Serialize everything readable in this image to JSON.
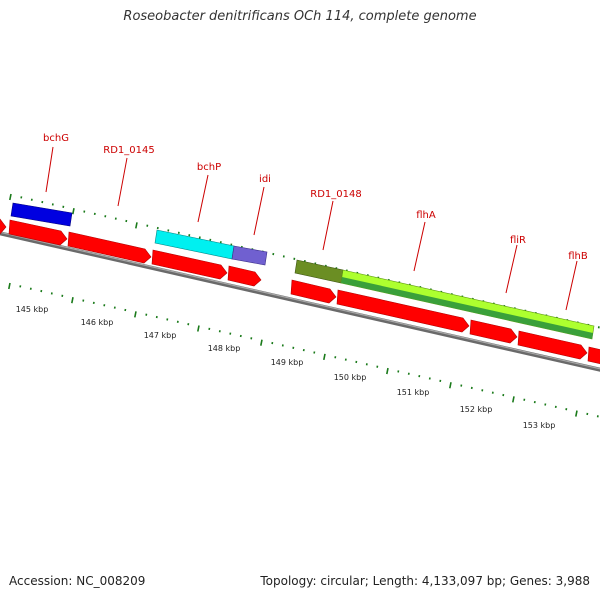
{
  "title": "Roseobacter denitrificans OCh 114, complete genome",
  "footer": {
    "accession": "Accession: NC_008209",
    "topology": "Topology: circular; Length: 4,133,097 bp; Genes: 3,988"
  },
  "colors": {
    "gene_arrow": "#ff0000",
    "backbone": "#808080",
    "tick": "#1a7a1a",
    "label": "#cc0000",
    "bchG": "#0000e0",
    "bchP": "#00f0f0",
    "idi": "#7060d0",
    "RD1_0148": "#6b8e23",
    "flhA": "#adff2f",
    "flhA_dark": "#3aa03a"
  },
  "gene_labels": [
    "bchG",
    "RD1_0145",
    "bchP",
    "idi",
    "RD1_0148",
    "flhA",
    "fliR",
    "flhB"
  ],
  "scale_labels": [
    "145 kbp",
    "146 kbp",
    "147 kbp",
    "148 kbp",
    "149 kbp",
    "150 kbp",
    "151 kbp",
    "152 kbp",
    "153 kbp"
  ]
}
